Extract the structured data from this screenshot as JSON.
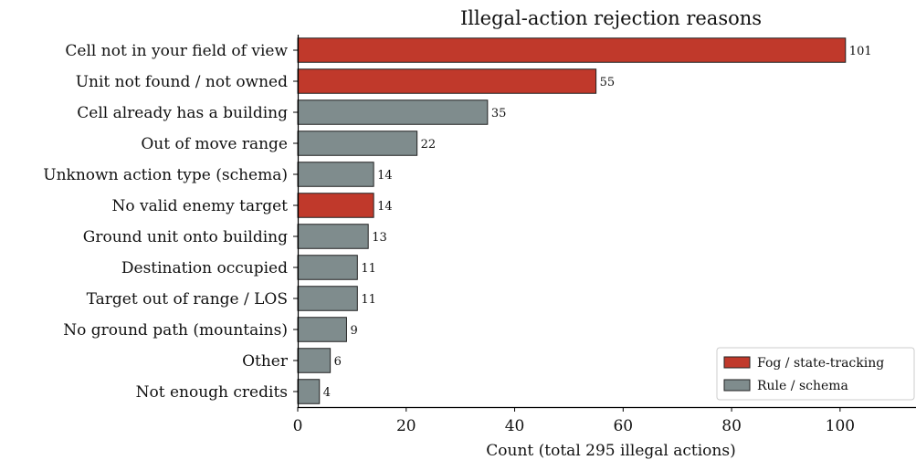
{
  "chart_data": {
    "type": "bar",
    "orientation": "horizontal",
    "title": "Illegal-action rejection reasons",
    "xlabel": "Count (total 295 illegal actions)",
    "ylabel": "",
    "xlim": [
      0,
      114
    ],
    "xticks": [
      "0",
      "20",
      "40",
      "60",
      "80",
      "100"
    ],
    "grid": false,
    "legend_position": "bottom-right",
    "legend": [
      {
        "name": "Fog / state-tracking",
        "color": "#c0392b"
      },
      {
        "name": "Rule / schema",
        "color": "#7f8c8d"
      }
    ],
    "bars": [
      {
        "label": "Cell not in your field of view",
        "value": 101,
        "value_label": "101",
        "group": 0
      },
      {
        "label": "Unit not found / not owned",
        "value": 55,
        "value_label": "55",
        "group": 0
      },
      {
        "label": "Cell already has a building",
        "value": 35,
        "value_label": "35",
        "group": 1
      },
      {
        "label": "Out of move range",
        "value": 22,
        "value_label": "22",
        "group": 1
      },
      {
        "label": "Unknown action type (schema)",
        "value": 14,
        "value_label": "14",
        "group": 1
      },
      {
        "label": "No valid enemy target",
        "value": 14,
        "value_label": "14",
        "group": 0
      },
      {
        "label": "Ground unit onto building",
        "value": 13,
        "value_label": "13",
        "group": 1
      },
      {
        "label": "Destination occupied",
        "value": 11,
        "value_label": "11",
        "group": 1
      },
      {
        "label": "Target out of range / LOS",
        "value": 11,
        "value_label": "11",
        "group": 1
      },
      {
        "label": "No ground path (mountains)",
        "value": 9,
        "value_label": "9",
        "group": 1
      },
      {
        "label": "Other",
        "value": 6,
        "value_label": "6",
        "group": 1
      },
      {
        "label": "Not enough credits",
        "value": 4,
        "value_label": "4",
        "group": 1
      }
    ]
  }
}
